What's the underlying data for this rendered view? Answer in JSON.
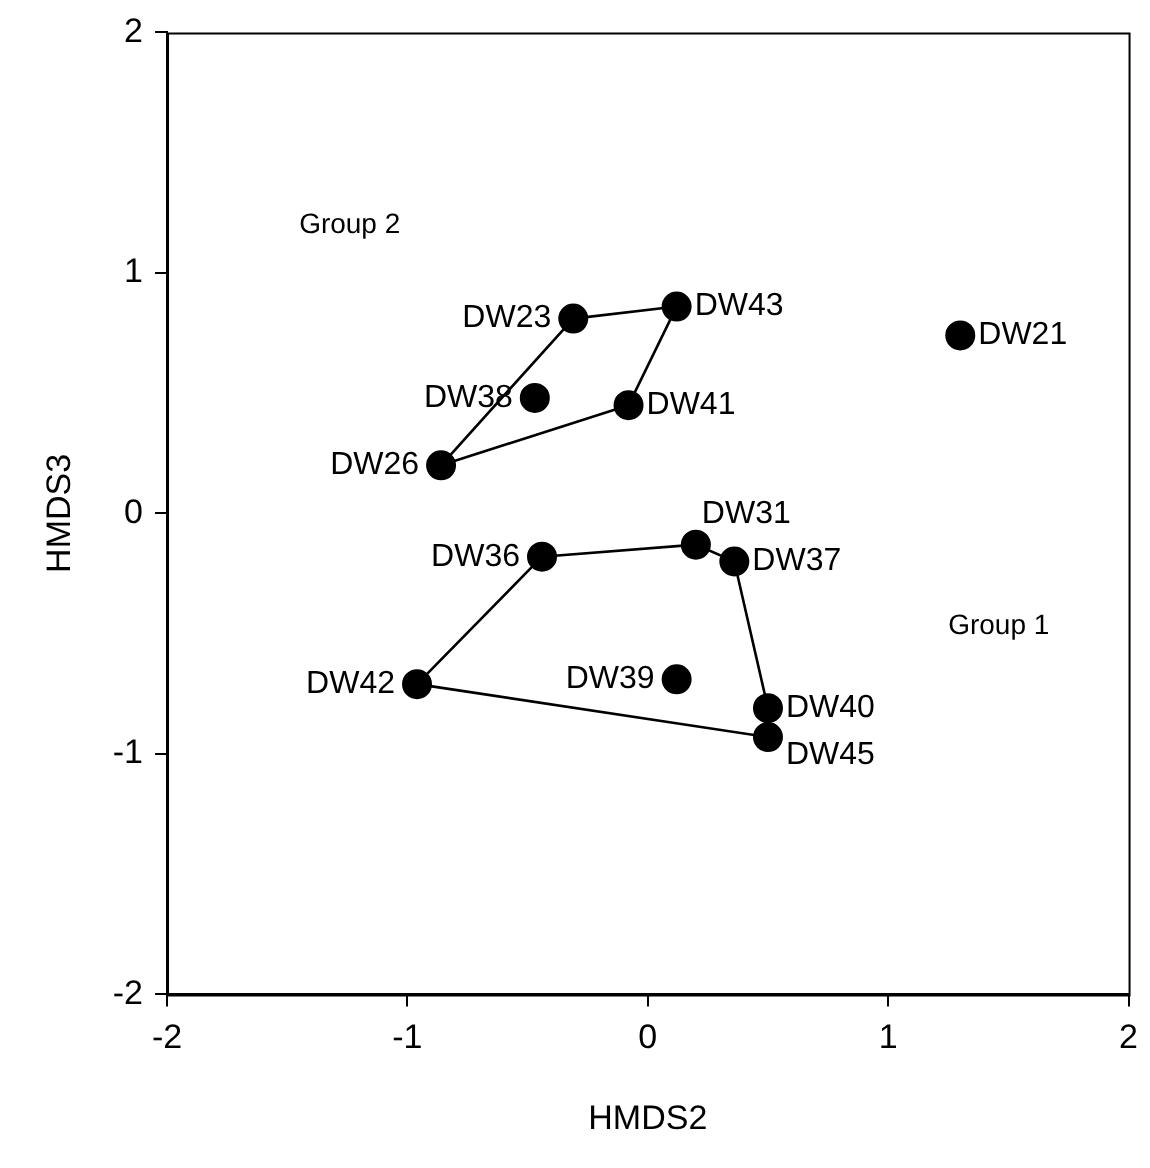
{
  "chart_data": {
    "type": "scatter",
    "xlabel": "HMDS2",
    "ylabel": "HMDS3",
    "xlim": [
      -2,
      2
    ],
    "ylim": [
      -2,
      2
    ],
    "xticks": [
      -2,
      -1,
      0,
      1,
      2
    ],
    "yticks": [
      -2,
      -1,
      0,
      1,
      2
    ],
    "grid": false,
    "legend": false,
    "marker": "circle",
    "annotations": [
      "Group 2",
      "Group 1"
    ],
    "series": [
      {
        "color": "#000000",
        "x": [
          -0.31,
          0.12,
          1.3,
          -0.47,
          -0.08,
          -0.86,
          -0.44,
          0.2,
          0.36,
          -0.96,
          0.12,
          0.5,
          0.5
        ],
        "values": [
          0.81,
          0.86,
          0.74,
          0.48,
          0.45,
          0.2,
          -0.18,
          -0.13,
          -0.2,
          -0.71,
          -0.69,
          -0.81,
          -0.93
        ],
        "value_labels": [
          "DW23",
          "DW43",
          "DW21",
          "DW38",
          "DW41",
          "DW26",
          "DW36",
          "DW31",
          "DW37",
          "DW42",
          "DW39",
          "DW40",
          "DW45"
        ]
      },
      {
        "type": "line",
        "color": "#000000",
        "marker": "none",
        "line_style": "solid",
        "x": [
          -0.86,
          -0.31,
          0.12
        ],
        "values": [
          0.2,
          0.81,
          0.86
        ]
      },
      {
        "type": "line",
        "color": "#000000",
        "marker": "none",
        "line_style": "solid",
        "x": [
          -0.86,
          -0.08,
          0.12
        ],
        "values": [
          0.2,
          0.45,
          0.86
        ]
      },
      {
        "type": "line",
        "color": "#000000",
        "marker": "none",
        "line_style": "solid",
        "x": [
          -0.96,
          -0.44,
          0.2,
          0.36,
          0.5,
          0.5
        ],
        "values": [
          -0.71,
          -0.18,
          -0.13,
          -0.2,
          -0.81,
          -0.93
        ]
      },
      {
        "type": "line",
        "color": "#000000",
        "marker": "none",
        "line_style": "solid",
        "x": [
          -0.96,
          0.5
        ],
        "values": [
          -0.71,
          -0.93
        ]
      }
    ]
  }
}
